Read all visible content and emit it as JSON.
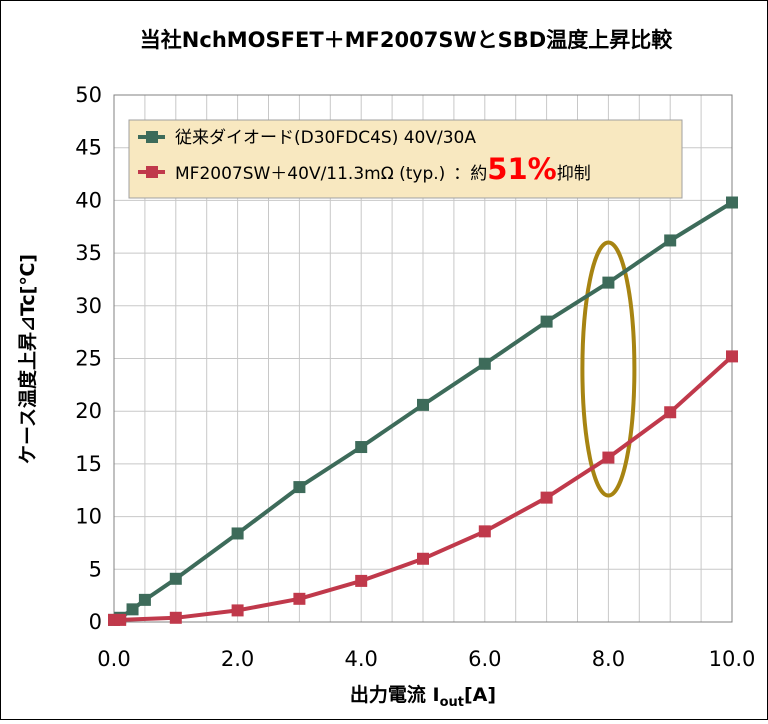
{
  "chart_data": {
    "type": "line",
    "title": "当社NchMOSFET＋MF2007SWとSBD温度上昇比較",
    "xlabel_main": "出力電流 I",
    "xlabel_sub": "out",
    "xlabel_tail": "[A]",
    "ylabel": "ケース温度上昇⊿Tc[℃]",
    "xlim": [
      0,
      10
    ],
    "ylim": [
      0,
      50
    ],
    "x_ticks": [
      "0.0",
      "2.0",
      "4.0",
      "6.0",
      "8.0",
      "10.0"
    ],
    "y_ticks": [
      "0",
      "5",
      "10",
      "15",
      "20",
      "25",
      "30",
      "35",
      "40",
      "45",
      "50"
    ],
    "grid": true,
    "legend_position": "top-left",
    "series": [
      {
        "name": "従来ダイオード(D30FDC4S) 40V/30A",
        "color": "#3d6b5a",
        "x": [
          0,
          0.1,
          0.3,
          0.5,
          1,
          2,
          3,
          4,
          5,
          6,
          7,
          8,
          9,
          10
        ],
        "y": [
          0.2,
          0.4,
          1.2,
          2.1,
          4.1,
          8.4,
          12.8,
          16.6,
          20.6,
          24.5,
          28.5,
          32.2,
          36.2,
          39.8
        ]
      },
      {
        "name": "MF2007SW＋40V/11.3mΩ (typ.)",
        "name_suffix": "：約",
        "emphasis": "51%",
        "name_tail": "抑制",
        "color": "#c0394b",
        "x": [
          0,
          0.1,
          1,
          2,
          3,
          4,
          5,
          6,
          7,
          8,
          9,
          10
        ],
        "y": [
          0.2,
          0.2,
          0.4,
          1.1,
          2.2,
          3.9,
          6.0,
          8.6,
          11.8,
          15.6,
          19.9,
          25.2
        ]
      }
    ],
    "annotation": {
      "type": "ellipse",
      "color": "#a78412",
      "x_center": 8,
      "y_range": [
        12,
        36
      ]
    },
    "legend_background": "#f8e8c0"
  }
}
